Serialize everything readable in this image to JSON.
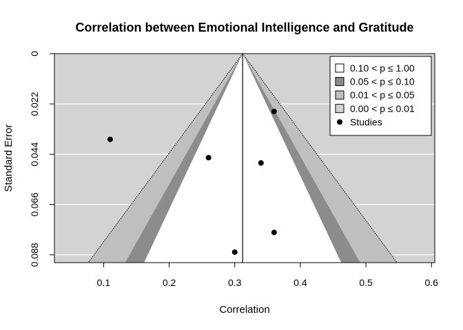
{
  "chart_data": {
    "type": "scatter",
    "subtype": "contour-enhanced funnel plot",
    "title": "Correlation between Emotional Intelligence and Gratitude",
    "xlabel": "Correlation",
    "ylabel": "Standard Error",
    "xlim": [
      0.025,
      0.605
    ],
    "ylim": [
      0.0914,
      0
    ],
    "y_reversed": true,
    "xticks": [
      "0.1",
      "0.2",
      "0.3",
      "0.4",
      "0.5",
      "0.6"
    ],
    "yticks": [
      "0",
      "0.022",
      "0.044",
      "0.066",
      "0.088"
    ],
    "grid": true,
    "legend_position": "top-right",
    "summary_estimate": 0.312,
    "legend": [
      {
        "label": "0.10 < p ≤ 1.00",
        "color": "#ffffff",
        "kind": "box"
      },
      {
        "label": "0.05 < p ≤ 0.10",
        "color": "#8c8c8c",
        "kind": "box"
      },
      {
        "label": "0.01 < p ≤ 0.05",
        "color": "#bfbfbf",
        "kind": "box"
      },
      {
        "label": "0.00 < p ≤ 0.01",
        "color": "#d3d3d3",
        "kind": "box"
      },
      {
        "label": "Studies",
        "color": "#000000",
        "kind": "point"
      }
    ],
    "series": [
      {
        "name": "Studies",
        "x": [
          0.11,
          0.26,
          0.34,
          0.36,
          0.36,
          0.3
        ],
        "y": [
          0.0375,
          0.0455,
          0.0478,
          0.0253,
          0.0782,
          0.0868
        ]
      }
    ],
    "colors": {
      "plot_background": "#d3d3d3",
      "region_p01": "#bfbfbf",
      "region_p05": "#8c8c8c",
      "region_p10": "#ffffff",
      "grid": "#ffffff"
    }
  }
}
